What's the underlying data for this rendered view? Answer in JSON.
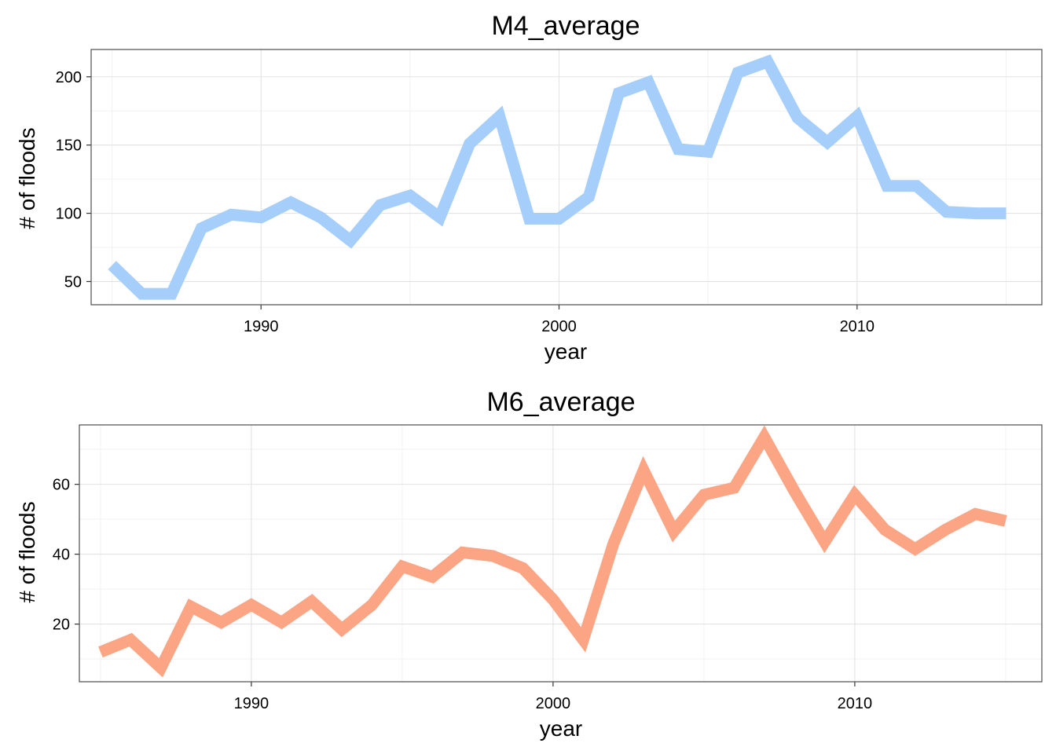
{
  "chart_data": [
    {
      "type": "line",
      "title": "M4_average",
      "xlabel": "year",
      "ylabel": "# of floods",
      "xlim": [
        1984.3,
        2016.2
      ],
      "ylim": [
        33,
        220
      ],
      "xticks": [
        1990,
        2000,
        2010
      ],
      "yticks": [
        50,
        100,
        150,
        200
      ],
      "grid": true,
      "series": [
        {
          "color": "#a6cefa",
          "x": [
            1985,
            1986,
            1987,
            1988,
            1989,
            1990,
            1991,
            1992,
            1993,
            1994,
            1995,
            1996,
            1997,
            1998,
            1999,
            2000,
            2001,
            2002,
            2003,
            2004,
            2005,
            2006,
            2007,
            2008,
            2009,
            2010,
            2011,
            2012,
            2013,
            2014,
            2015
          ],
          "values": [
            62,
            41,
            41,
            89,
            99,
            97,
            108,
            97,
            80,
            106,
            113,
            97,
            151,
            171,
            96,
            96,
            112,
            188,
            196,
            147,
            145,
            203,
            211,
            170,
            152,
            171,
            120,
            120,
            101,
            100,
            100
          ]
        }
      ]
    },
    {
      "type": "line",
      "title": "M6_average",
      "xlabel": "year",
      "ylabel": "# of floods",
      "xlim": [
        1984.3,
        2016.2
      ],
      "ylim": [
        3.5,
        77
      ],
      "xticks": [
        1990,
        2000,
        2010
      ],
      "yticks": [
        20,
        40,
        60
      ],
      "grid": true,
      "series": [
        {
          "color": "#fca585",
          "x": [
            1985,
            1986,
            1987,
            1988,
            1989,
            1990,
            1991,
            1992,
            1993,
            1994,
            1995,
            1996,
            1997,
            1998,
            1999,
            2000,
            2001,
            2002,
            2003,
            2004,
            2005,
            2006,
            2007,
            2008,
            2009,
            2010,
            2011,
            2012,
            2013,
            2014,
            2015
          ],
          "values": [
            12,
            15.5,
            7.5,
            25,
            20.5,
            25.5,
            20.5,
            26.5,
            18.5,
            25.5,
            36.5,
            33.5,
            40.5,
            39.5,
            36,
            27,
            15.5,
            43,
            64,
            46.5,
            57,
            59,
            73.5,
            58,
            43.5,
            57,
            47,
            41.5,
            47,
            51.5,
            49.5
          ]
        }
      ]
    }
  ]
}
